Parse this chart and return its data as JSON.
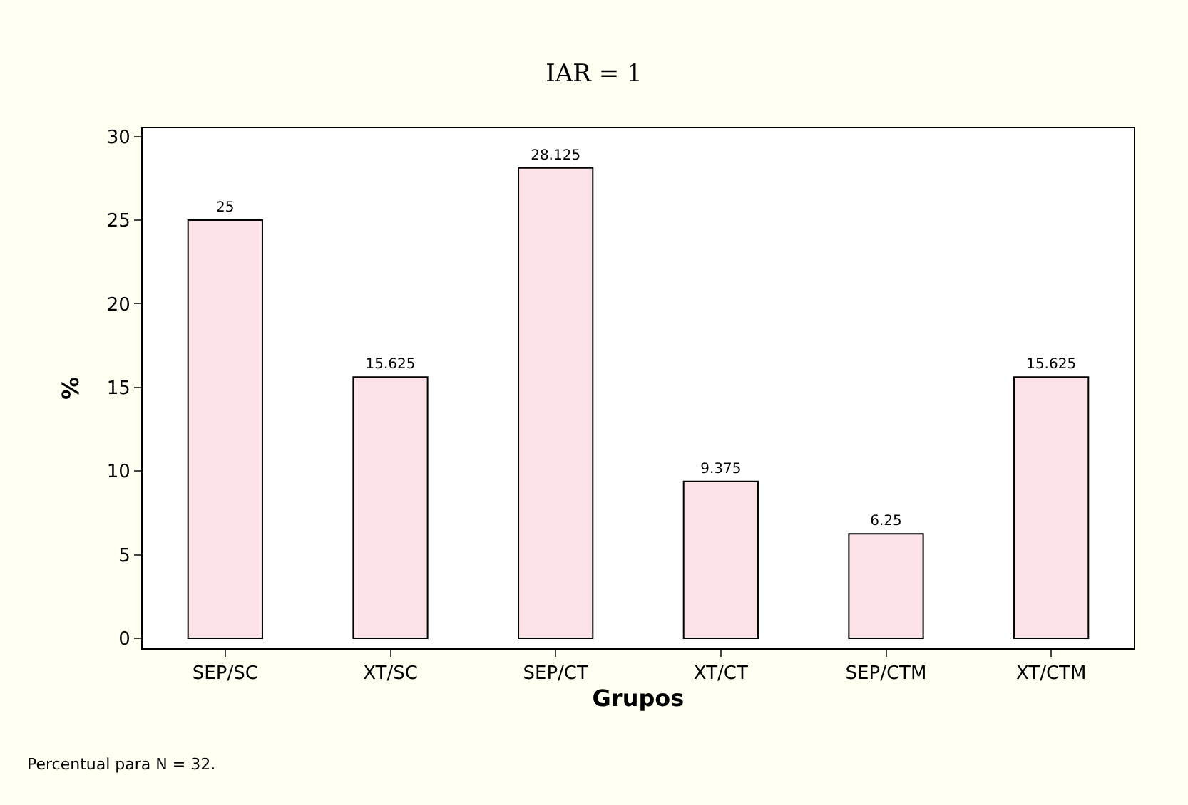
{
  "chart_data": {
    "type": "bar",
    "title": "IAR = 1",
    "xlabel": "Grupos",
    "ylabel": "%",
    "categories": [
      "SEP/SC",
      "XT/SC",
      "SEP/CT",
      "XT/CT",
      "SEP/CTM",
      "XT/CTM"
    ],
    "values": [
      25,
      15.625,
      28.125,
      9.375,
      6.25,
      15.625
    ],
    "color": "#fde3e8",
    "ylim": [
      -0.6,
      30.5
    ],
    "yticks": [
      0,
      5,
      10,
      15,
      20,
      25,
      30
    ],
    "data_labels": true,
    "annotations": [
      "Percentual para N = 32."
    ]
  }
}
